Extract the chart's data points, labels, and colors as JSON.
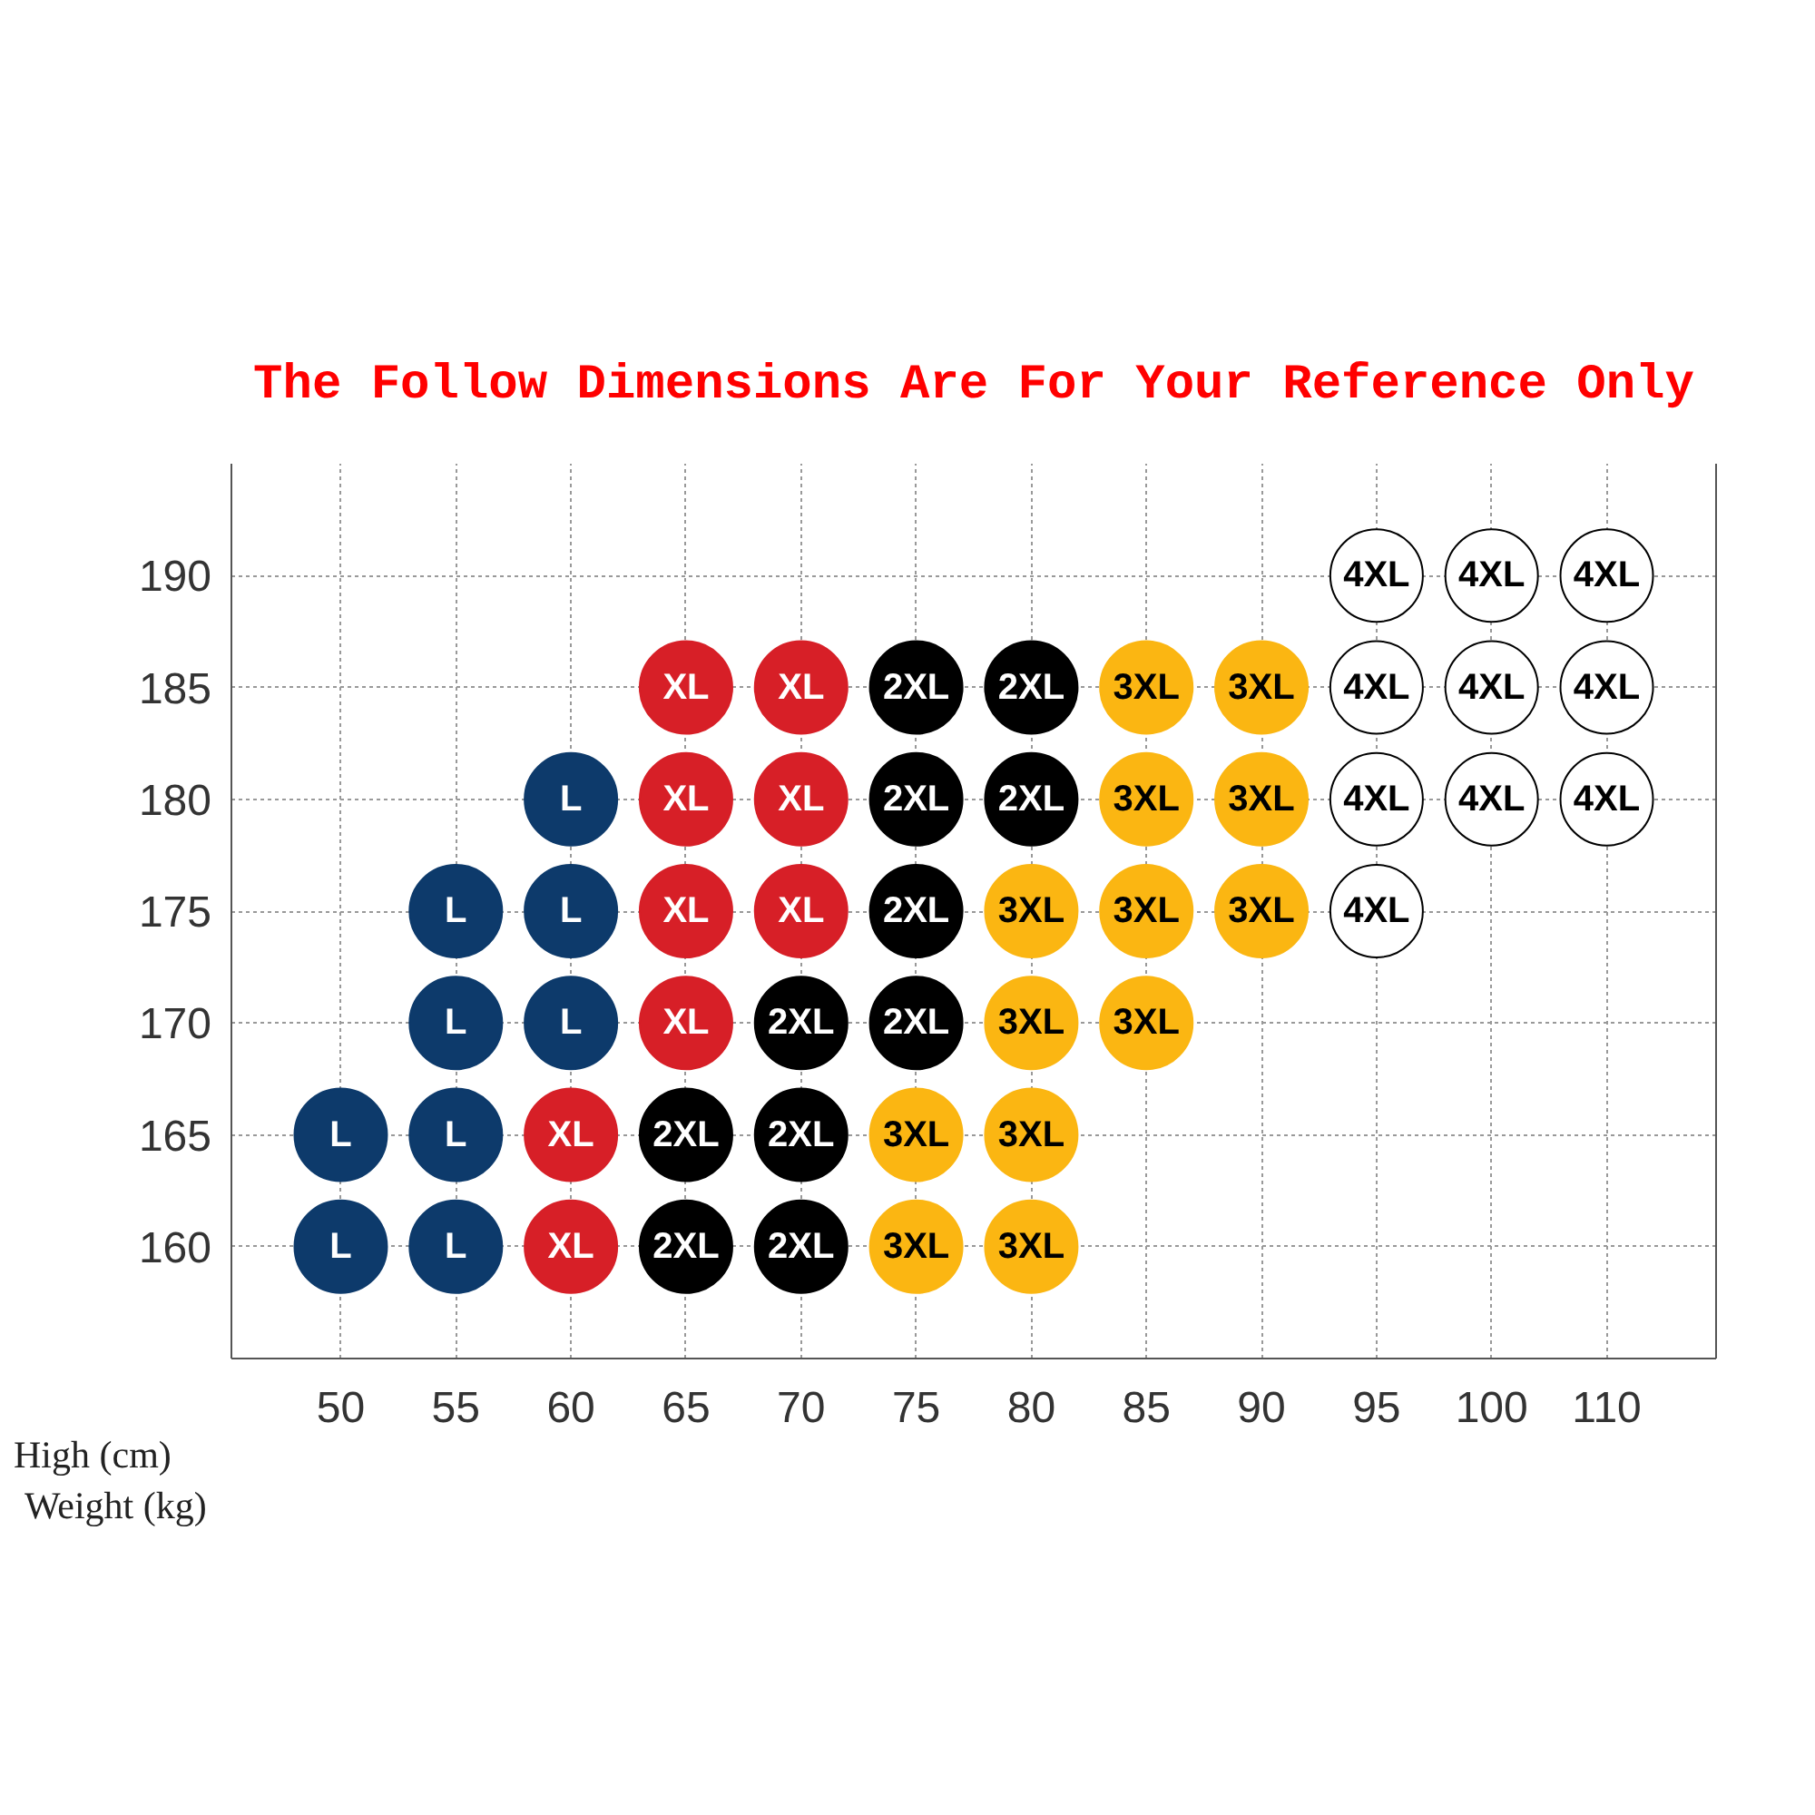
{
  "chart_data": {
    "type": "scatter",
    "title": "The Follow Dimensions Are For Your Reference Only",
    "xlabel": "Weight (kg)",
    "ylabel": "High (cm)",
    "categories": [
      "50",
      "55",
      "60",
      "65",
      "70",
      "75",
      "80",
      "85",
      "90",
      "95",
      "100",
      "110"
    ],
    "ylim": [
      155,
      195
    ],
    "yticks": [
      160,
      165,
      170,
      175,
      180,
      185,
      190
    ],
    "grid": true,
    "marker": "circle",
    "series": [
      {
        "name": "L",
        "color": "#0d3a6b",
        "x": [
          "50",
          "55",
          "50",
          "55",
          "55",
          "60",
          "55",
          "60",
          "60"
        ],
        "values": [
          160,
          160,
          165,
          165,
          170,
          170,
          175,
          175,
          180
        ]
      },
      {
        "name": "XL",
        "color": "#d71f27",
        "x": [
          "60",
          "60",
          "65",
          "65",
          "70",
          "65",
          "70",
          "65",
          "70"
        ],
        "values": [
          160,
          165,
          170,
          175,
          175,
          180,
          180,
          185,
          185
        ]
      },
      {
        "name": "2XL",
        "color": "#000000",
        "x": [
          "65",
          "70",
          "65",
          "70",
          "70",
          "75",
          "75",
          "75",
          "80",
          "75",
          "80"
        ],
        "values": [
          160,
          160,
          165,
          165,
          170,
          170,
          175,
          180,
          180,
          185,
          185
        ]
      },
      {
        "name": "3XL",
        "color": "#fbb612",
        "x": [
          "75",
          "80",
          "75",
          "80",
          "80",
          "85",
          "80",
          "85",
          "90",
          "85",
          "90",
          "85",
          "90"
        ],
        "values": [
          160,
          160,
          165,
          165,
          170,
          170,
          175,
          175,
          175,
          180,
          180,
          185,
          185
        ]
      },
      {
        "name": "4XL",
        "color": "#ffffff",
        "x": [
          "95",
          "95",
          "100",
          "110",
          "95",
          "100",
          "110",
          "95",
          "100",
          "110"
        ],
        "values": [
          175,
          180,
          180,
          180,
          185,
          185,
          185,
          190,
          190,
          190
        ]
      }
    ]
  }
}
